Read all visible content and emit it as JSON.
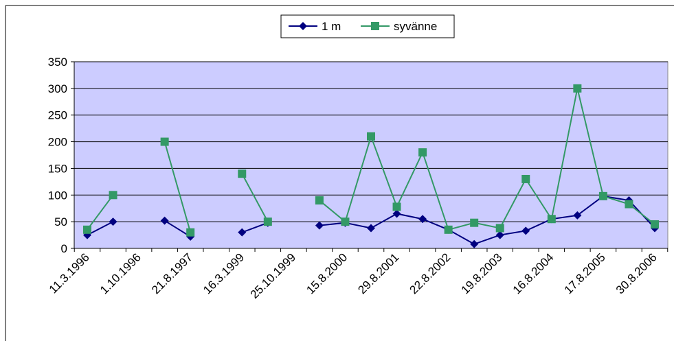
{
  "chart_data": {
    "type": "line",
    "title": "",
    "xlabel": "",
    "ylabel": "",
    "ylim": [
      0,
      350
    ],
    "yticks": [
      0,
      50,
      100,
      150,
      200,
      250,
      300,
      350
    ],
    "x_tick_labels": [
      "11.3.1996",
      "1.10.1996",
      "21.8.1997",
      "16.3.1999",
      "25.10.1999",
      "15.8.2000",
      "29.8.2001",
      "22.8.2002",
      "19.8.2003",
      "16.8.2004",
      "17.8.2005",
      "30.8.2006"
    ],
    "grid": true,
    "legend": "top-center",
    "plot_background": "#ccccff",
    "series": [
      {
        "name": "1 m",
        "color": "#000080",
        "marker": "diamond",
        "values": [
          25,
          50,
          null,
          52,
          22,
          null,
          30,
          48,
          null,
          43,
          48,
          38,
          65,
          55,
          35,
          8,
          25,
          33,
          55,
          62,
          98,
          90,
          38
        ]
      },
      {
        "name": "syvänne",
        "color": "#339966",
        "marker": "square",
        "values": [
          35,
          100,
          null,
          200,
          30,
          null,
          140,
          50,
          null,
          90,
          50,
          210,
          78,
          180,
          35,
          48,
          38,
          130,
          55,
          300,
          98,
          83,
          45
        ]
      }
    ]
  }
}
